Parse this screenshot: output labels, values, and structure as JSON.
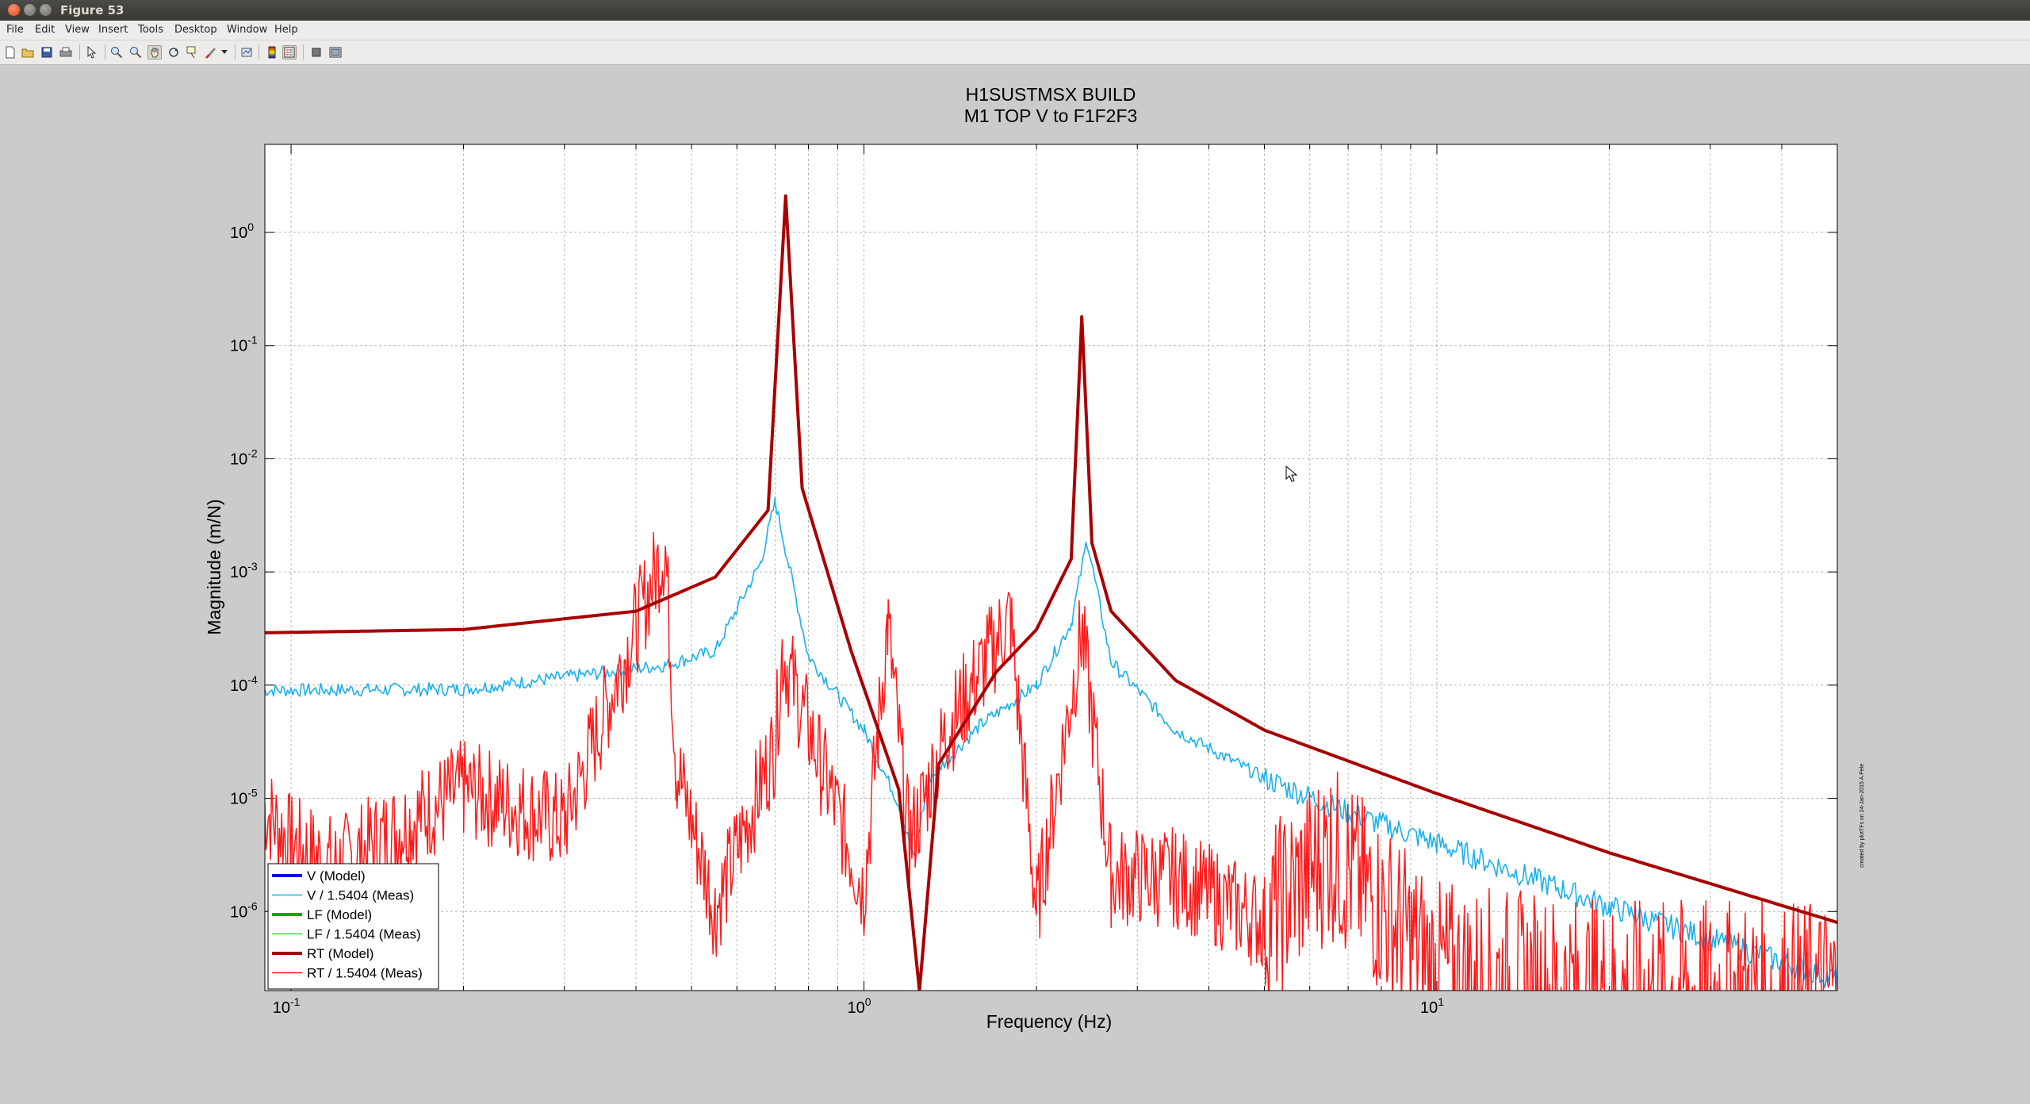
{
  "window": {
    "title": "Figure 53"
  },
  "menu": [
    "File",
    "Edit",
    "View",
    "Insert",
    "Tools",
    "Desktop",
    "Window",
    "Help"
  ],
  "toolbar": {
    "icons": [
      "new-figure-icon",
      "open-file-icon",
      "save-icon",
      "print-icon",
      "edit-plot-arrow-icon",
      "zoom-in-icon",
      "zoom-out-icon",
      "pan-hand-icon",
      "rotate-3d-icon",
      "data-cursor-icon",
      "brush-icon",
      "link-plot-icon",
      "insert-colorbar-icon",
      "insert-legend-icon",
      "hide-plot-tools-icon",
      "show-plot-tools-icon"
    ]
  },
  "colors": {
    "model_red": "#a80000",
    "meas_red": "#ff1a1a",
    "meas_blue": "#1ab0ee",
    "model_blue": "#0000ee",
    "model_green": "#00aa00",
    "meas_green": "#33dd33"
  },
  "footnote": "created by plotTFs on 24-Jan-2015 A.Pele",
  "chart_data": {
    "type": "line",
    "title": "H1SUSTMSX BUILD",
    "subtitle": "M1 TOP V to F1F2F3",
    "xlabel": "Frequency (Hz)",
    "ylabel": "Magnitude (m/N)",
    "xscale": "log",
    "yscale": "log",
    "xlim": [
      0.09,
      50
    ],
    "ylim": [
      2e-07,
      6
    ],
    "x_ticks": [
      "10^-1",
      "10^0",
      "10^1"
    ],
    "y_ticks": [
      "10^-6",
      "10^-5",
      "10^-4",
      "10^-3",
      "10^-2",
      "10^-1",
      "10^0"
    ],
    "grid": true,
    "legend_position": "bottom-left",
    "series": [
      {
        "name": "V (Model)",
        "values": []
      },
      {
        "name": "V / 1.5404 (Meas)",
        "x": [
          0.09,
          0.2,
          0.45,
          0.55,
          0.66,
          0.7,
          0.8,
          1.0,
          1.15,
          1.22,
          1.3,
          1.6,
          2.0,
          2.3,
          2.45,
          2.7,
          3.5,
          5.0,
          7.0,
          10.0,
          20.0,
          50.0
        ],
        "values": [
          9e-05,
          9.2e-05,
          0.00015,
          0.0002,
          0.0012,
          0.0042,
          0.00018,
          4e-05,
          9e-06,
          3e-06,
          1.5e-05,
          4.5e-05,
          0.0001,
          0.00035,
          0.0019,
          0.00016,
          4e-05,
          1.5e-05,
          7.5e-06,
          4e-06,
          1.1e-06,
          2.5e-07
        ]
      },
      {
        "name": "LF (Model)",
        "values": []
      },
      {
        "name": "LF / 1.5404 (Meas)",
        "values": []
      },
      {
        "name": "RT (Model)",
        "x": [
          0.09,
          0.2,
          0.4,
          0.55,
          0.68,
          0.73,
          0.78,
          0.95,
          1.15,
          1.25,
          1.35,
          1.7,
          2.0,
          2.3,
          2.4,
          2.5,
          2.7,
          3.5,
          5.0,
          10.0,
          20.0,
          50.0
        ],
        "values": [
          0.00029,
          0.00031,
          0.00045,
          0.0009,
          0.0035,
          2.1,
          0.0055,
          0.0002,
          1.2e-05,
          2e-07,
          2e-05,
          0.00013,
          0.00031,
          0.0013,
          0.18,
          0.0018,
          0.00045,
          0.00011,
          4e-05,
          1.1e-05,
          3.3e-06,
          8e-07
        ]
      },
      {
        "name": "RT / 1.5404 (Meas)",
        "x": [
          0.09,
          0.1,
          0.12,
          0.2,
          0.3,
          0.45,
          0.47,
          0.55,
          0.7,
          0.72,
          1.0,
          1.1,
          1.2,
          1.4,
          1.8,
          2.0,
          2.4,
          2.7,
          3.5,
          5.0,
          6.5,
          10.0,
          20.0,
          50.0
        ],
        "values": [
          8e-06,
          4e-06,
          2.5e-06,
          1.2e-05,
          6e-06,
          0.0017,
          2e-05,
          1e-06,
          3e-05,
          0.0002,
          1.5e-06,
          0.00035,
          4e-06,
          4e-05,
          0.0004,
          1e-06,
          0.0003,
          2e-06,
          2e-06,
          8e-07,
          3.5e-06,
          3e-07,
          2e-07,
          2e-07
        ]
      }
    ]
  }
}
